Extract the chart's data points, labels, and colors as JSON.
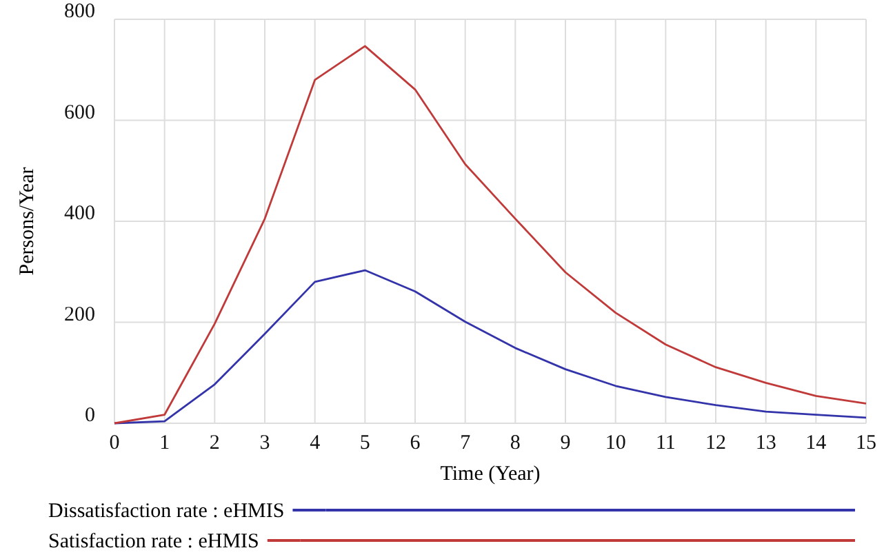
{
  "chart_data": {
    "type": "line",
    "xlabel": "Time (Year)",
    "ylabel": "Persons/Year",
    "x": [
      0,
      1,
      2,
      3,
      4,
      5,
      6,
      7,
      8,
      9,
      10,
      11,
      12,
      13,
      14,
      15
    ],
    "xlim": [
      0,
      15
    ],
    "xticks": [
      0,
      1,
      2,
      3,
      4,
      5,
      6,
      7,
      8,
      9,
      10,
      11,
      12,
      13,
      14,
      15
    ],
    "ylim": [
      0,
      800
    ],
    "yticks": [
      0,
      200,
      400,
      600,
      800
    ],
    "grid": true,
    "legend": "bottom",
    "line_style": "solid",
    "series": [
      {
        "name": "Dissatisfaction rate : eHMIS",
        "color": "#3333aa",
        "values": [
          0,
          4,
          77,
          177,
          280,
          303,
          261,
          201,
          149,
          107,
          74,
          52,
          36,
          23,
          17,
          11
        ]
      },
      {
        "name": "Satisfaction rate : eHMIS",
        "color": "#c03a3a",
        "values": [
          0,
          17,
          197,
          405,
          680,
          747,
          661,
          513,
          405,
          299,
          219,
          156,
          111,
          80,
          54,
          39
        ]
      }
    ]
  }
}
